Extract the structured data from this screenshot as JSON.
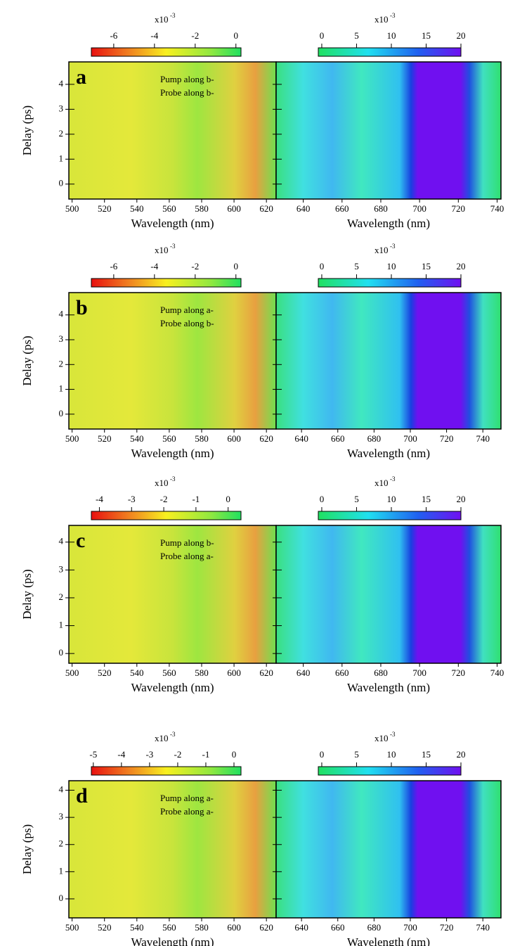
{
  "chart_data": [
    {
      "type": "heatmap",
      "panel_label": "a",
      "annotations": [
        "Pump along b-",
        "Probe along b-"
      ],
      "xlabel": "Wavelength (nm)",
      "ylabel": "Delay (ps)",
      "xlim": [
        498,
        626
      ],
      "xticks": [
        500,
        520,
        540,
        560,
        580,
        600,
        620
      ],
      "ylim": [
        -0.6,
        4.9
      ],
      "yticks": [
        0,
        1,
        2,
        3,
        4
      ],
      "colorbar": {
        "scale": {
          "base": "x10",
          "exponent": "-3"
        },
        "lim": [
          -7.1,
          0.25
        ],
        "ticks": [
          -6,
          -4,
          -2,
          0
        ]
      }
    },
    {
      "type": "heatmap",
      "xlabel": "Wavelength (nm)",
      "xlim": [
        626,
        742
      ],
      "xticks": [
        640,
        660,
        680,
        700,
        720,
        740
      ],
      "ylim": [
        -0.6,
        4.9
      ],
      "yticks": [
        0,
        1,
        2,
        3,
        4
      ],
      "colorbar": {
        "scale": {
          "base": "x10",
          "exponent": "-3"
        },
        "lim": [
          -0.5,
          20
        ],
        "ticks": [
          0,
          5,
          10,
          15,
          20
        ]
      }
    },
    {
      "type": "heatmap",
      "panel_label": "b",
      "annotations": [
        "Pump along a-",
        "Probe along b-"
      ],
      "xlabel": "Wavelength (nm)",
      "ylabel": "Delay (ps)",
      "xlim": [
        498,
        626
      ],
      "xticks": [
        500,
        520,
        540,
        560,
        580,
        600,
        620
      ],
      "ylim": [
        -0.6,
        4.9
      ],
      "yticks": [
        0,
        1,
        2,
        3,
        4
      ],
      "colorbar": {
        "scale": {
          "base": "x10",
          "exponent": "-3"
        },
        "lim": [
          -7.1,
          0.25
        ],
        "ticks": [
          -6,
          -4,
          -2,
          0
        ]
      }
    },
    {
      "type": "heatmap",
      "xlabel": "Wavelength (nm)",
      "xlim": [
        626,
        750
      ],
      "xticks": [
        640,
        660,
        680,
        700,
        720,
        740
      ],
      "ylim": [
        -0.6,
        4.9
      ],
      "yticks": [
        0,
        1,
        2,
        3,
        4
      ],
      "colorbar": {
        "scale": {
          "base": "x10",
          "exponent": "-3"
        },
        "lim": [
          -0.5,
          20
        ],
        "ticks": [
          0,
          5,
          10,
          15,
          20
        ]
      }
    },
    {
      "type": "heatmap",
      "panel_label": "c",
      "annotations": [
        "Pump along b-",
        "Probe along a-"
      ],
      "xlabel": "Wavelength (nm)",
      "ylabel": "Delay (ps)",
      "xlim": [
        498,
        626
      ],
      "xticks": [
        500,
        520,
        540,
        560,
        580,
        600,
        620
      ],
      "ylim": [
        -0.35,
        4.6
      ],
      "yticks": [
        0,
        1,
        2,
        3,
        4
      ],
      "colorbar": {
        "scale": {
          "base": "x10",
          "exponent": "-3"
        },
        "lim": [
          -4.25,
          0.4
        ],
        "ticks": [
          -4,
          -3,
          -2,
          -1,
          0
        ]
      }
    },
    {
      "type": "heatmap",
      "xlabel": "Wavelength (nm)",
      "xlim": [
        626,
        742
      ],
      "xticks": [
        640,
        660,
        680,
        700,
        720,
        740
      ],
      "ylim": [
        -0.35,
        4.6
      ],
      "yticks": [
        0,
        1,
        2,
        3,
        4
      ],
      "colorbar": {
        "scale": {
          "base": "x10",
          "exponent": "-3"
        },
        "lim": [
          -0.5,
          20
        ],
        "ticks": [
          0,
          5,
          10,
          15,
          20
        ]
      }
    },
    {
      "type": "heatmap",
      "panel_label": "d",
      "annotations": [
        "Pump along a-",
        "Probe along a-"
      ],
      "xlabel": "Wavelength (nm)",
      "ylabel": "Delay (ps)",
      "xlim": [
        498,
        626
      ],
      "xticks": [
        500,
        520,
        540,
        560,
        580,
        600,
        620
      ],
      "ylim": [
        -0.7,
        4.35
      ],
      "yticks": [
        0,
        1,
        2,
        3,
        4
      ],
      "colorbar": {
        "scale": {
          "base": "x10",
          "exponent": "-3"
        },
        "lim": [
          -5.07,
          0.25
        ],
        "ticks": [
          -5,
          -4,
          -3,
          -2,
          -1,
          0
        ]
      }
    },
    {
      "type": "heatmap",
      "xlabel": "Wavelength (nm)",
      "xlim": [
        626,
        750
      ],
      "xticks": [
        640,
        660,
        680,
        700,
        720,
        740
      ],
      "ylim": [
        -0.7,
        4.35
      ],
      "yticks": [
        0,
        1,
        2,
        3,
        4
      ],
      "colorbar": {
        "scale": {
          "base": "x10",
          "exponent": "-3"
        },
        "lim": [
          -0.5,
          20
        ],
        "ticks": [
          0,
          5,
          10,
          15,
          20
        ]
      }
    }
  ]
}
